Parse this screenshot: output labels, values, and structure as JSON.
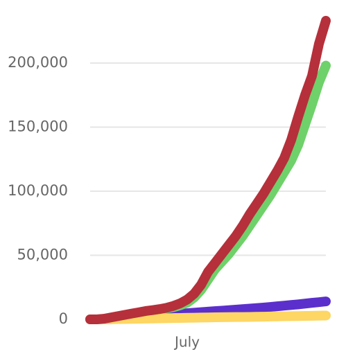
{
  "chart_data": {
    "type": "line",
    "categories": [
      null,
      null,
      null,
      null,
      null,
      null,
      null,
      null,
      null,
      null,
      null,
      null,
      null,
      null,
      "July",
      null,
      null,
      null,
      null,
      null,
      null,
      null,
      null,
      null,
      null,
      null,
      null,
      null,
      null,
      null,
      null,
      null,
      null,
      null,
      null
    ],
    "series": [
      {
        "color": "#5b2fcc",
        "values": [
          0,
          0,
          0,
          200,
          400,
          700,
          1000,
          1300,
          1700,
          2100,
          2600,
          3200,
          3800,
          4400,
          4800,
          5200,
          5600,
          6000,
          6400,
          6800,
          7200,
          7600,
          8000,
          8400,
          8800,
          9200,
          9700,
          10200,
          10700,
          11200,
          11700,
          12300,
          12900,
          13400,
          14000
        ]
      },
      {
        "color": "#6fd16a",
        "values": [
          0,
          0,
          300,
          1000,
          2000,
          3000,
          4000,
          5000,
          6000,
          7000,
          7800,
          8500,
          9500,
          11000,
          13000,
          17000,
          23000,
          31000,
          39000,
          45000,
          51000,
          58000,
          65000,
          73000,
          81000,
          89000,
          97000,
          106000,
          115000,
          124000,
          136000,
          152000,
          168000,
          185000,
          198000
        ]
      },
      {
        "color": "#fdd663",
        "values": [
          0,
          0,
          0,
          100,
          200,
          300,
          400,
          500,
          600,
          700,
          800,
          900,
          1000,
          1100,
          1200,
          1300,
          1400,
          1500,
          1600,
          1700,
          1750,
          1800,
          1850,
          1900,
          2000,
          2100,
          2200,
          2300,
          2400,
          2500,
          2600,
          2700,
          2800,
          2900,
          3000
        ]
      },
      {
        "color": "#b5303a",
        "values": [
          0,
          0,
          500,
          1500,
          2500,
          3500,
          4500,
          5500,
          6500,
          7200,
          8000,
          9000,
          10500,
          12500,
          15500,
          20000,
          27000,
          37000,
          44000,
          51000,
          58000,
          65000,
          73000,
          82000,
          90000,
          98000,
          107000,
          116000,
          126000,
          140000,
          158000,
          175000,
          190000,
          215000,
          233000
        ]
      }
    ],
    "ylim": [
      0,
      240000
    ],
    "yticks": [
      0,
      {
        "value": 50000,
        "label": "50,000"
      },
      {
        "value": 100000,
        "label": "100,000"
      },
      {
        "value": 150000,
        "label": "150,000"
      },
      {
        "value": 200000,
        "label": "200,000"
      }
    ],
    "grid": true
  }
}
